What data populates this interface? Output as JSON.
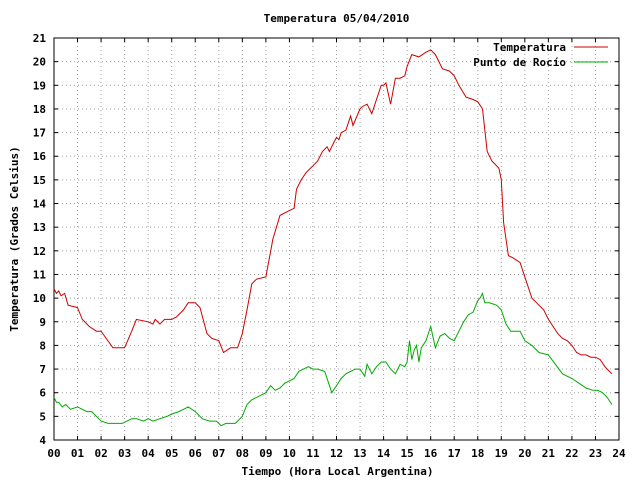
{
  "chart_data": {
    "type": "line",
    "title": "Temperatura 05/04/2010",
    "xlabel": "Tiempo (Hora Local Argentina)",
    "ylabel": "Temperatura (Grados Celsius)",
    "xlim": [
      0,
      24
    ],
    "ylim": [
      4,
      21
    ],
    "grid": true,
    "legend_position": "top-right",
    "x_ticks": [
      "00",
      "01",
      "02",
      "03",
      "04",
      "05",
      "06",
      "07",
      "08",
      "09",
      "10",
      "11",
      "12",
      "13",
      "14",
      "15",
      "16",
      "17",
      "18",
      "19",
      "20",
      "21",
      "22",
      "23",
      "24"
    ],
    "y_ticks": [
      "4",
      "5",
      "6",
      "7",
      "8",
      "9",
      "10",
      "11",
      "12",
      "13",
      "14",
      "15",
      "16",
      "17",
      "18",
      "19",
      "20",
      "21"
    ],
    "series": [
      {
        "name": "Temperatura",
        "color": "#cc0000",
        "x": [
          0.0,
          0.1,
          0.2,
          0.3,
          0.45,
          0.6,
          1.0,
          1.2,
          1.5,
          1.8,
          2.0,
          2.5,
          2.9,
          3.0,
          3.3,
          3.5,
          4.0,
          4.2,
          4.3,
          4.5,
          4.7,
          5.0,
          5.2,
          5.5,
          5.7,
          6.0,
          6.2,
          6.5,
          6.7,
          7.0,
          7.2,
          7.5,
          7.8,
          8.0,
          8.2,
          8.4,
          8.6,
          9.0,
          9.3,
          9.6,
          10.0,
          10.2,
          10.3,
          10.5,
          10.7,
          11.0,
          11.2,
          11.4,
          11.6,
          11.7,
          11.9,
          12.0,
          12.1,
          12.2,
          12.4,
          12.6,
          12.7,
          13.0,
          13.1,
          13.3,
          13.5,
          13.7,
          13.9,
          14.0,
          14.1,
          14.3,
          14.5,
          14.7,
          14.9,
          15.0,
          15.2,
          15.5,
          15.8,
          16.0,
          16.2,
          16.5,
          16.8,
          17.0,
          17.2,
          17.5,
          17.8,
          18.0,
          18.2,
          18.4,
          18.6,
          18.9,
          19.0,
          19.1,
          19.3,
          19.5,
          19.8,
          20.0,
          20.3,
          20.5,
          20.8,
          21.0,
          21.2,
          21.4,
          21.6,
          21.8,
          22.0,
          22.2,
          22.4,
          22.6,
          22.8,
          23.0,
          23.2,
          23.4,
          23.5,
          23.7
        ],
        "values": [
          10.4,
          10.2,
          10.3,
          10.1,
          10.2,
          9.7,
          9.6,
          9.1,
          8.8,
          8.6,
          8.6,
          7.9,
          7.9,
          7.9,
          8.6,
          9.1,
          9.0,
          8.9,
          9.1,
          8.9,
          9.1,
          9.1,
          9.2,
          9.5,
          9.8,
          9.8,
          9.6,
          8.5,
          8.3,
          8.2,
          7.7,
          7.9,
          7.9,
          8.5,
          9.5,
          10.6,
          10.8,
          10.9,
          12.5,
          13.5,
          13.7,
          13.8,
          14.6,
          15.0,
          15.3,
          15.6,
          15.8,
          16.2,
          16.4,
          16.2,
          16.6,
          16.8,
          16.7,
          17.0,
          17.1,
          17.7,
          17.3,
          18.0,
          18.1,
          18.2,
          17.8,
          18.4,
          19.0,
          19.0,
          19.1,
          18.2,
          19.3,
          19.3,
          19.4,
          19.8,
          20.3,
          20.2,
          20.4,
          20.5,
          20.3,
          19.7,
          19.6,
          19.4,
          19.0,
          18.5,
          18.4,
          18.3,
          18.0,
          16.2,
          15.8,
          15.5,
          15.0,
          13.2,
          11.8,
          11.7,
          11.5,
          10.9,
          10.0,
          9.8,
          9.5,
          9.1,
          8.8,
          8.5,
          8.3,
          8.2,
          8.0,
          7.7,
          7.6,
          7.6,
          7.5,
          7.5,
          7.4,
          7.1,
          7.0,
          6.8
        ]
      },
      {
        "name": "Punto de Rocío",
        "color": "#00aa00",
        "x": [
          0.0,
          0.1,
          0.2,
          0.35,
          0.5,
          0.7,
          1.0,
          1.2,
          1.4,
          1.6,
          1.8,
          2.0,
          2.3,
          2.6,
          2.9,
          3.1,
          3.3,
          3.5,
          3.8,
          4.0,
          4.2,
          4.5,
          4.8,
          5.0,
          5.3,
          5.5,
          5.7,
          6.0,
          6.3,
          6.6,
          6.9,
          7.0,
          7.1,
          7.3,
          7.5,
          7.7,
          8.0,
          8.2,
          8.4,
          8.6,
          8.8,
          9.0,
          9.2,
          9.4,
          9.6,
          9.8,
          10.0,
          10.2,
          10.4,
          10.6,
          10.8,
          11.0,
          11.2,
          11.5,
          11.8,
          12.0,
          12.2,
          12.4,
          12.6,
          12.8,
          13.0,
          13.2,
          13.3,
          13.5,
          13.7,
          13.9,
          14.1,
          14.3,
          14.5,
          14.7,
          14.9,
          15.0,
          15.1,
          15.2,
          15.3,
          15.4,
          15.5,
          15.6,
          15.8,
          16.0,
          16.2,
          16.4,
          16.6,
          16.8,
          17.0,
          17.2,
          17.4,
          17.6,
          17.8,
          18.0,
          18.1,
          18.2,
          18.3,
          18.5,
          18.8,
          19.0,
          19.2,
          19.4,
          19.6,
          19.8,
          20.0,
          20.3,
          20.6,
          21.0,
          21.3,
          21.6,
          22.0,
          22.3,
          22.6,
          22.9,
          23.1,
          23.3,
          23.5,
          23.7
        ],
        "values": [
          5.8,
          5.6,
          5.6,
          5.4,
          5.5,
          5.3,
          5.4,
          5.3,
          5.2,
          5.2,
          5.0,
          4.8,
          4.7,
          4.7,
          4.7,
          4.8,
          4.9,
          4.9,
          4.8,
          4.9,
          4.8,
          4.9,
          5.0,
          5.1,
          5.2,
          5.3,
          5.4,
          5.2,
          4.9,
          4.8,
          4.8,
          4.7,
          4.6,
          4.7,
          4.7,
          4.7,
          5.0,
          5.5,
          5.7,
          5.8,
          5.9,
          6.0,
          6.3,
          6.1,
          6.2,
          6.4,
          6.5,
          6.6,
          6.9,
          7.0,
          7.1,
          7.0,
          7.0,
          6.9,
          6.0,
          6.3,
          6.6,
          6.8,
          6.9,
          7.0,
          7.0,
          6.7,
          7.2,
          6.8,
          7.1,
          7.3,
          7.3,
          7.0,
          6.8,
          7.2,
          7.1,
          7.3,
          8.2,
          7.4,
          7.8,
          8.0,
          7.3,
          7.9,
          8.2,
          8.8,
          7.9,
          8.4,
          8.5,
          8.3,
          8.2,
          8.6,
          9.0,
          9.3,
          9.4,
          9.9,
          10.0,
          10.2,
          9.8,
          9.8,
          9.7,
          9.5,
          8.9,
          8.6,
          8.6,
          8.6,
          8.2,
          8.0,
          7.7,
          7.6,
          7.2,
          6.8,
          6.6,
          6.4,
          6.2,
          6.1,
          6.1,
          6.0,
          5.8,
          5.5
        ]
      }
    ]
  }
}
